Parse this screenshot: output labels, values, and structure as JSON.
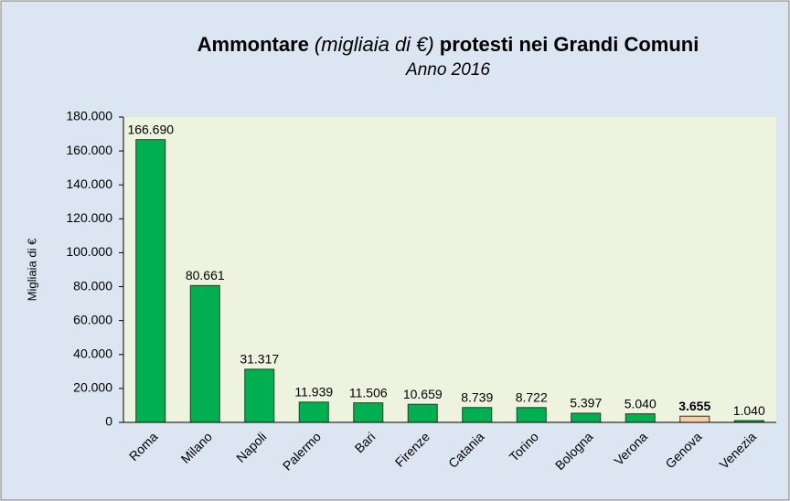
{
  "chart_data": {
    "type": "bar",
    "title": [
      "Ammontare",
      "(migliaia di €)",
      "protesti nei Grandi Comuni"
    ],
    "subtitle": "Anno 2016",
    "y_label": "Migliaia di €",
    "categories": [
      "Roma",
      "Milano",
      "Napoli",
      "Palermo",
      "Bari",
      "Firenze",
      "Catania",
      "Torino",
      "Bologna",
      "Verona",
      "Genova",
      "Venezia"
    ],
    "values": [
      166690,
      80661,
      31317,
      11939,
      11506,
      10659,
      8739,
      8722,
      5397,
      5040,
      3655,
      1040
    ],
    "value_labels": [
      "166.690",
      "80.661",
      "31.317",
      "11.939",
      "11.506",
      "10.659",
      "8.739",
      "8.722",
      "5.397",
      "5.040",
      "3.655",
      "1.040"
    ],
    "colors": [
      "#00b050",
      "#00b050",
      "#00b050",
      "#00b050",
      "#00b050",
      "#00b050",
      "#00b050",
      "#00b050",
      "#00b050",
      "#00b050",
      "#f8cbad",
      "#00b050"
    ],
    "highlight": "Genova",
    "ylim": [
      0,
      180000
    ],
    "yticks": [
      0,
      {
        "value": 20000,
        "label": "20.000"
      },
      {
        "value": 40000,
        "label": "40.000"
      },
      {
        "value": 60000,
        "label": "60.000"
      },
      {
        "value": 80000,
        "label": "80.000"
      },
      {
        "value": 100000,
        "label": "100.000"
      },
      {
        "value": 120000,
        "label": "120.000"
      },
      {
        "value": 140000,
        "label": "140.000"
      },
      {
        "value": 160000,
        "label": "160.000"
      },
      {
        "value": 180000,
        "label": "180.000"
      }
    ],
    "grid": false
  }
}
